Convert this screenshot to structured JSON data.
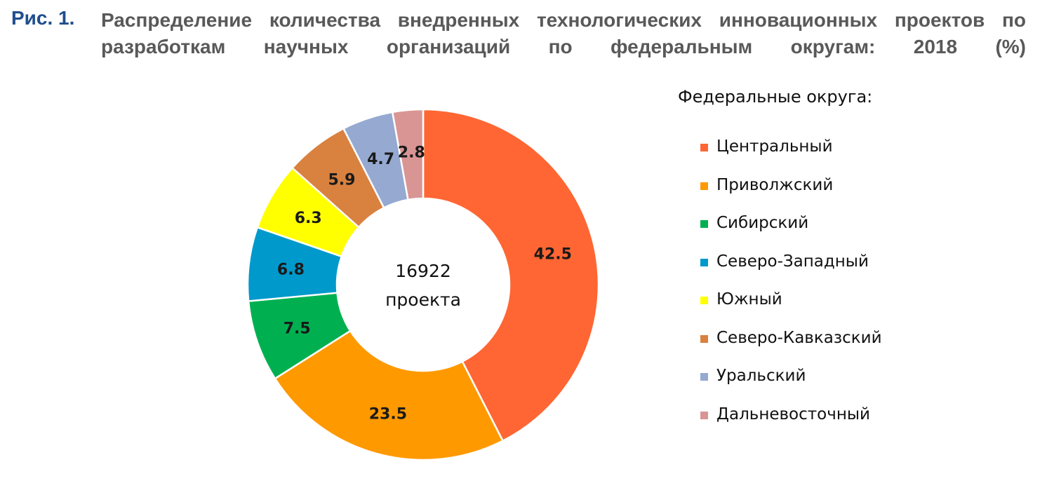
{
  "figure": {
    "label": "Рис. 1.",
    "title": "Распределение количества внедренных технологических инновационных проектов по разработкам научных организаций по федеральным округам: 2018 (%)"
  },
  "chart_data": {
    "type": "pie",
    "variant": "donut",
    "center_text": [
      "16922",
      "проекта"
    ],
    "legend_title": "Федеральные округа:",
    "legend_placement": "right",
    "categories": [
      "Центральный",
      "Приволжский",
      "Сибирский",
      "Северо-Западный",
      "Южный",
      "Северо-Кавказский",
      "Уральский",
      "Дальневосточный"
    ],
    "values": [
      42.5,
      23.5,
      7.5,
      6.8,
      6.3,
      5.9,
      4.7,
      2.8
    ],
    "value_labels": [
      "42.5",
      "23.5",
      "7.5",
      "6.8",
      "6.3",
      "5.9",
      "4.7",
      "2.8"
    ],
    "colors": [
      "#ff6633",
      "#ff9900",
      "#00b050",
      "#0099cc",
      "#ffff00",
      "#d9813f",
      "#95a9d1",
      "#d99594"
    ],
    "start": "12 o'clock",
    "direction": "clockwise"
  }
}
